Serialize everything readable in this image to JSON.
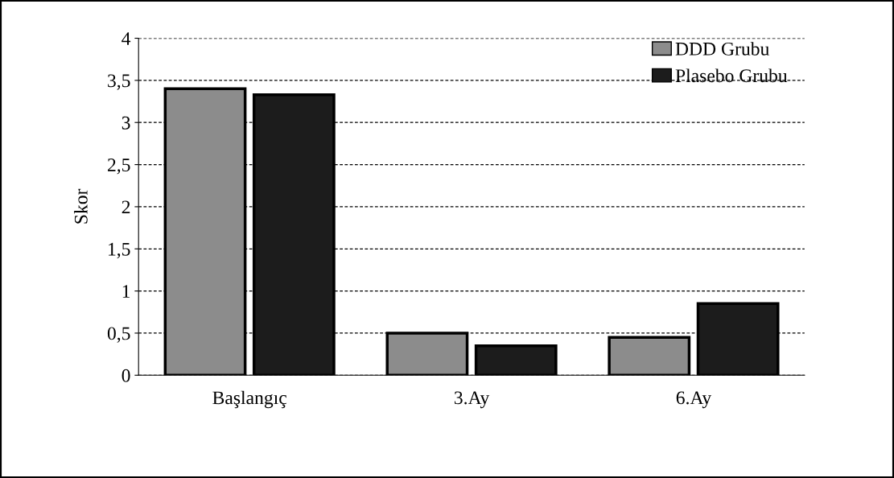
{
  "chart_data": {
    "type": "bar",
    "ylabel": "Skor",
    "categories": [
      "Başlangıç",
      "3.Ay",
      "6.Ay"
    ],
    "series": [
      {
        "name": "DDD Grubu",
        "color": "#8c8c8c",
        "values": [
          3.4,
          0.5,
          0.45
        ]
      },
      {
        "name": "Plasebo Grubu",
        "color": "#1c1c1c",
        "values": [
          3.33,
          0.35,
          0.85
        ]
      }
    ],
    "ylim": [
      0,
      4
    ],
    "yticks": [
      0,
      {
        "value": 0.5,
        "label": "0,5"
      },
      1,
      {
        "value": 1.5,
        "label": "1,5"
      },
      2,
      {
        "value": 2.5,
        "label": "2,5"
      },
      3,
      {
        "value": 3.5,
        "label": "3,5"
      },
      4
    ],
    "grid": "y",
    "legend": "top right"
  }
}
